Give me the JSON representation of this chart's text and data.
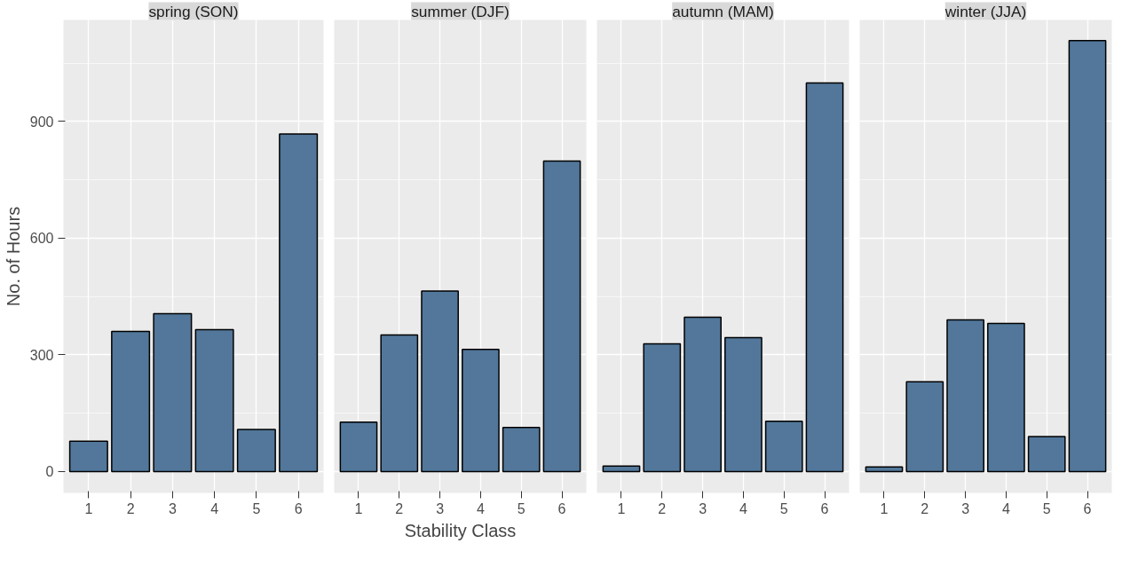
{
  "chart_data": [
    {
      "type": "bar",
      "title": "spring (SON)",
      "ylabel": "No. of Hours",
      "categories": [
        "1",
        "2",
        "3",
        "4",
        "5",
        "6"
      ],
      "values": [
        78,
        360,
        406,
        365,
        108,
        868
      ],
      "color": "#52779a",
      "ylim": [
        -55,
        1161
      ],
      "yticks": [
        0,
        300,
        600,
        900
      ],
      "grid": true
    },
    {
      "type": "bar",
      "title": "summer (DJF)",
      "xlabel": "Stability Class",
      "categories": [
        "1",
        "2",
        "3",
        "4",
        "5",
        "6"
      ],
      "values": [
        127,
        351,
        464,
        314,
        113,
        798
      ],
      "color": "#52779a",
      "ylim": [
        -55,
        1161
      ],
      "yticks": [
        0,
        300,
        600,
        900
      ],
      "grid": true,
      "tick_labels": "x"
    },
    {
      "type": "bar",
      "title": "autumn (MAM)",
      "categories": [
        "1",
        "2",
        "3",
        "4",
        "5",
        "6"
      ],
      "values": [
        14,
        328,
        397,
        344,
        129,
        999
      ],
      "color": "#52779a",
      "ylim": [
        -55,
        1161
      ],
      "yticks": [
        0,
        300,
        600,
        900
      ],
      "grid": true,
      "tick_labels": "x"
    },
    {
      "type": "bar",
      "title": "winter (JJA)",
      "categories": [
        "1",
        "2",
        "3",
        "4",
        "5",
        "6"
      ],
      "values": [
        12,
        231,
        390,
        381,
        90,
        1108
      ],
      "color": "#52779a",
      "ylim": [
        -55,
        1161
      ],
      "yticks": [
        0,
        300,
        600,
        900
      ],
      "grid": true,
      "tick_labels": "x"
    }
  ]
}
